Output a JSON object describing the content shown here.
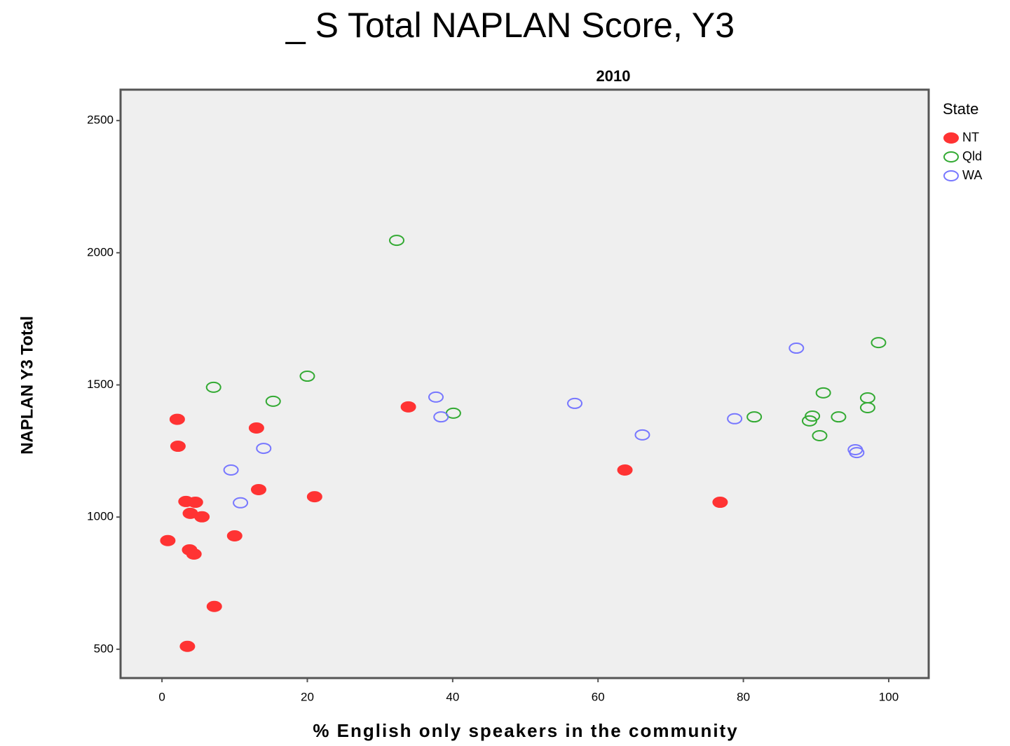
{
  "chart_data": {
    "type": "scatter",
    "title": "_ S Total NAPLAN Score, Y3",
    "subtitle": "2010",
    "x_label": "% English only speakers in the community",
    "y_label": "NAPLAN Y3 Total",
    "legend_title": "State",
    "legend_position": "right",
    "xlim": [
      -5.7,
      105.5
    ],
    "ylim": [
      391,
      2617
    ],
    "xticks": [
      0,
      20,
      40,
      60,
      80,
      100
    ],
    "yticks": [
      500,
      1000,
      1500,
      2000,
      2500
    ],
    "series": [
      {
        "name": "NT",
        "color": "#ff3333",
        "filled": true,
        "x": [
          2.1,
          2.2,
          3.3,
          4.6,
          3.9,
          5.5,
          0.8,
          3.8,
          4.4,
          7.2,
          3.5,
          10.0,
          13.0,
          13.3,
          21.0,
          33.9,
          63.7,
          76.8
        ],
        "values": [
          1370,
          1268,
          1059,
          1056,
          1014,
          1001,
          911,
          876,
          860,
          662,
          511,
          929,
          1337,
          1104,
          1077,
          1417,
          1178,
          1056
        ]
      },
      {
        "name": "Qld",
        "color": "#33aa33",
        "filled": false,
        "x": [
          7.1,
          15.3,
          20.0,
          32.3,
          40.1,
          81.5,
          91.0,
          89.5,
          89.1,
          93.1,
          90.5,
          97.1,
          97.1,
          98.6
        ],
        "values": [
          1491,
          1438,
          1533,
          2047,
          1393,
          1379,
          1470,
          1382,
          1364,
          1379,
          1308,
          1451,
          1414,
          1660
        ]
      },
      {
        "name": "WA",
        "color": "#7777ff",
        "filled": false,
        "x": [
          9.5,
          10.8,
          14.0,
          37.7,
          38.4,
          56.8,
          66.1,
          78.8,
          87.3,
          95.4,
          95.6
        ],
        "values": [
          1178,
          1054,
          1260,
          1454,
          1379,
          1430,
          1311,
          1372,
          1639,
          1255,
          1244
        ]
      }
    ]
  }
}
